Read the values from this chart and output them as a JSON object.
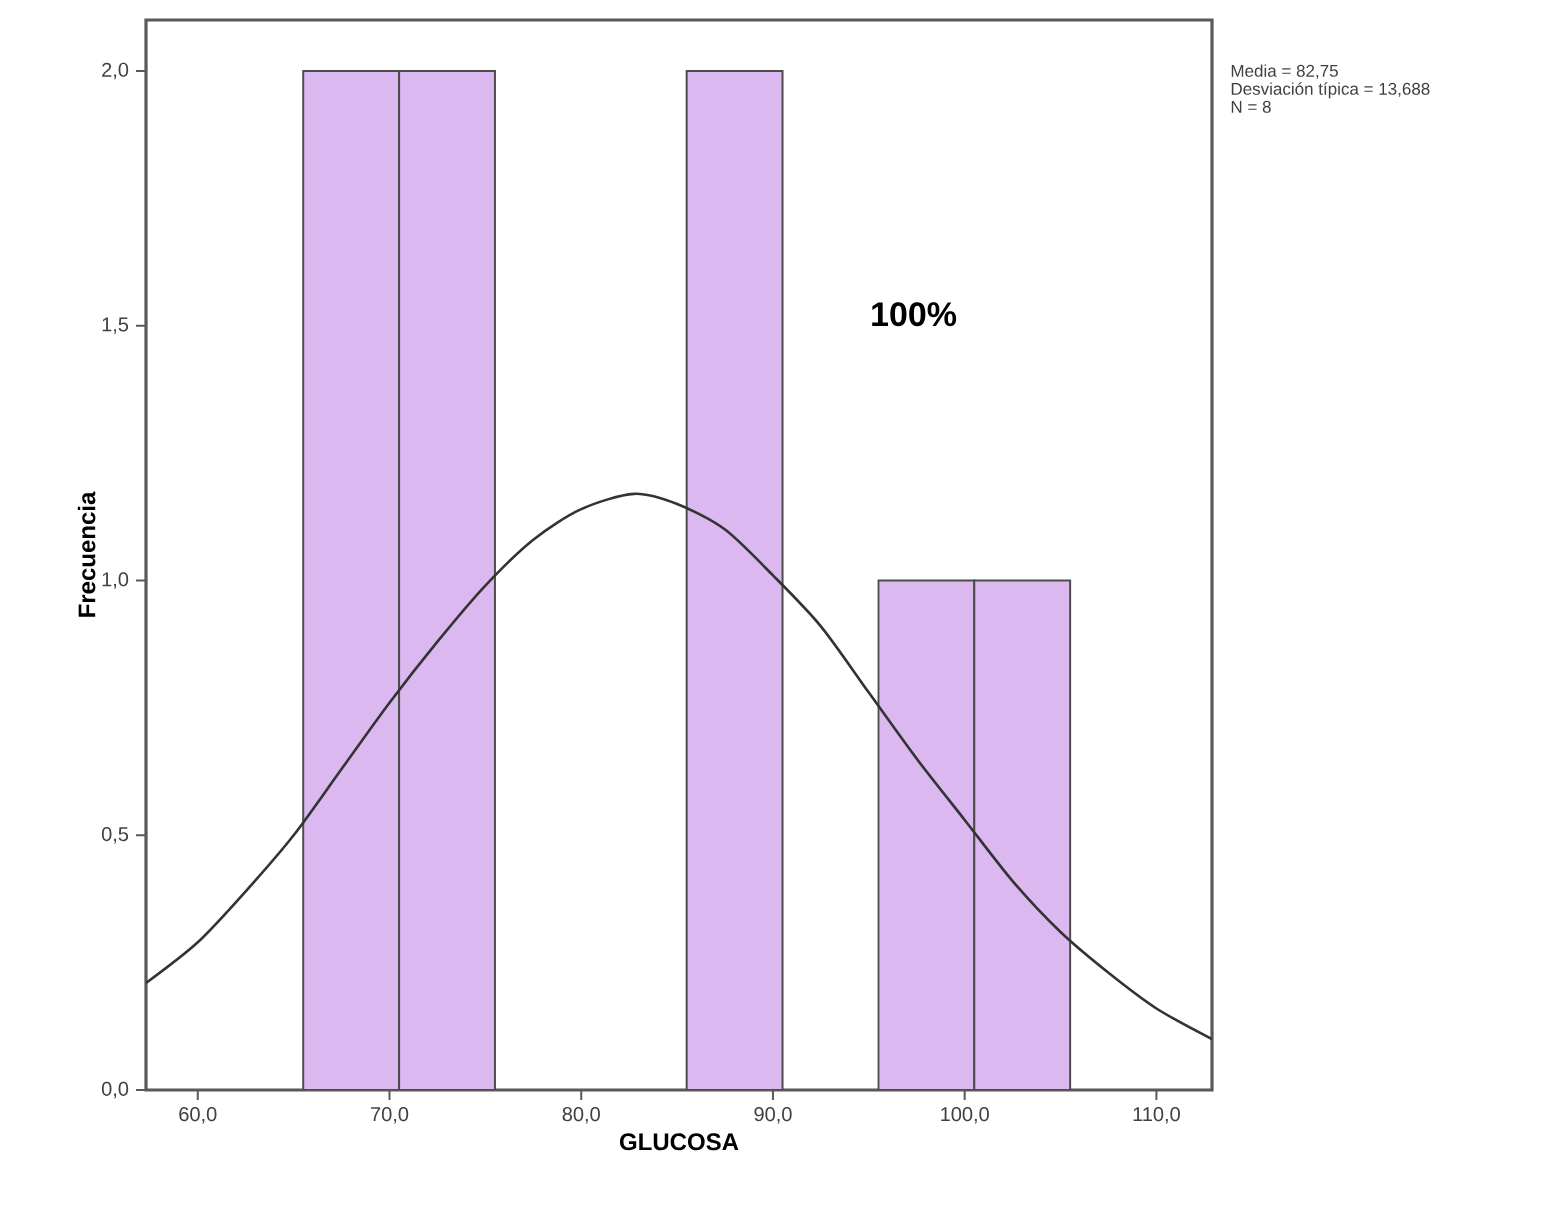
{
  "chart_data": {
    "type": "histogram",
    "xlabel": "GLUCOSA",
    "ylabel": "Frecuencia",
    "bins": [
      65.5,
      70.5,
      75.5,
      80.5,
      85.5,
      90.5,
      95.5,
      100.5,
      105.5
    ],
    "values": [
      2,
      2,
      0,
      0,
      2,
      0,
      1,
      1
    ],
    "color": "#dcb8f0",
    "series": [
      {
        "type": "line",
        "color": "#333333",
        "x": [
          57.3,
          60,
          62.5,
          65,
          67.5,
          70,
          72.5,
          75,
          77.5,
          80,
          82.75,
          85,
          87.5,
          90,
          92.5,
          95,
          97.5,
          100,
          102.5,
          105,
          107.5,
          110,
          112.9
        ],
        "values": [
          0.21,
          0.29,
          0.39,
          0.5,
          0.63,
          0.76,
          0.88,
          0.99,
          1.08,
          1.14,
          1.17,
          1.15,
          1.1,
          1.01,
          0.91,
          0.78,
          0.65,
          0.53,
          0.41,
          0.31,
          0.23,
          0.16,
          0.1
        ]
      }
    ],
    "xlim": [
      57.3,
      112.9
    ],
    "ylim": [
      0,
      2.1
    ],
    "xticks": [
      {
        "value": 60,
        "label": "60,0"
      },
      {
        "value": 70,
        "label": "70,0"
      },
      {
        "value": 80,
        "label": "80,0"
      },
      {
        "value": 90,
        "label": "90,0"
      },
      {
        "value": 100,
        "label": "100,0"
      },
      {
        "value": 110,
        "label": "110,0"
      }
    ],
    "yticks": [
      {
        "value": 0,
        "label": "0,0"
      },
      {
        "value": 0.5,
        "label": "0,5"
      },
      {
        "value": 1,
        "label": "1,0"
      },
      {
        "value": 1.5,
        "label": "1,5"
      },
      {
        "value": 2,
        "label": "2,0"
      }
    ],
    "annotations": [
      "Media = 82,75",
      "Desviación típica = 13,688",
      "N = 8",
      "100%"
    ]
  }
}
